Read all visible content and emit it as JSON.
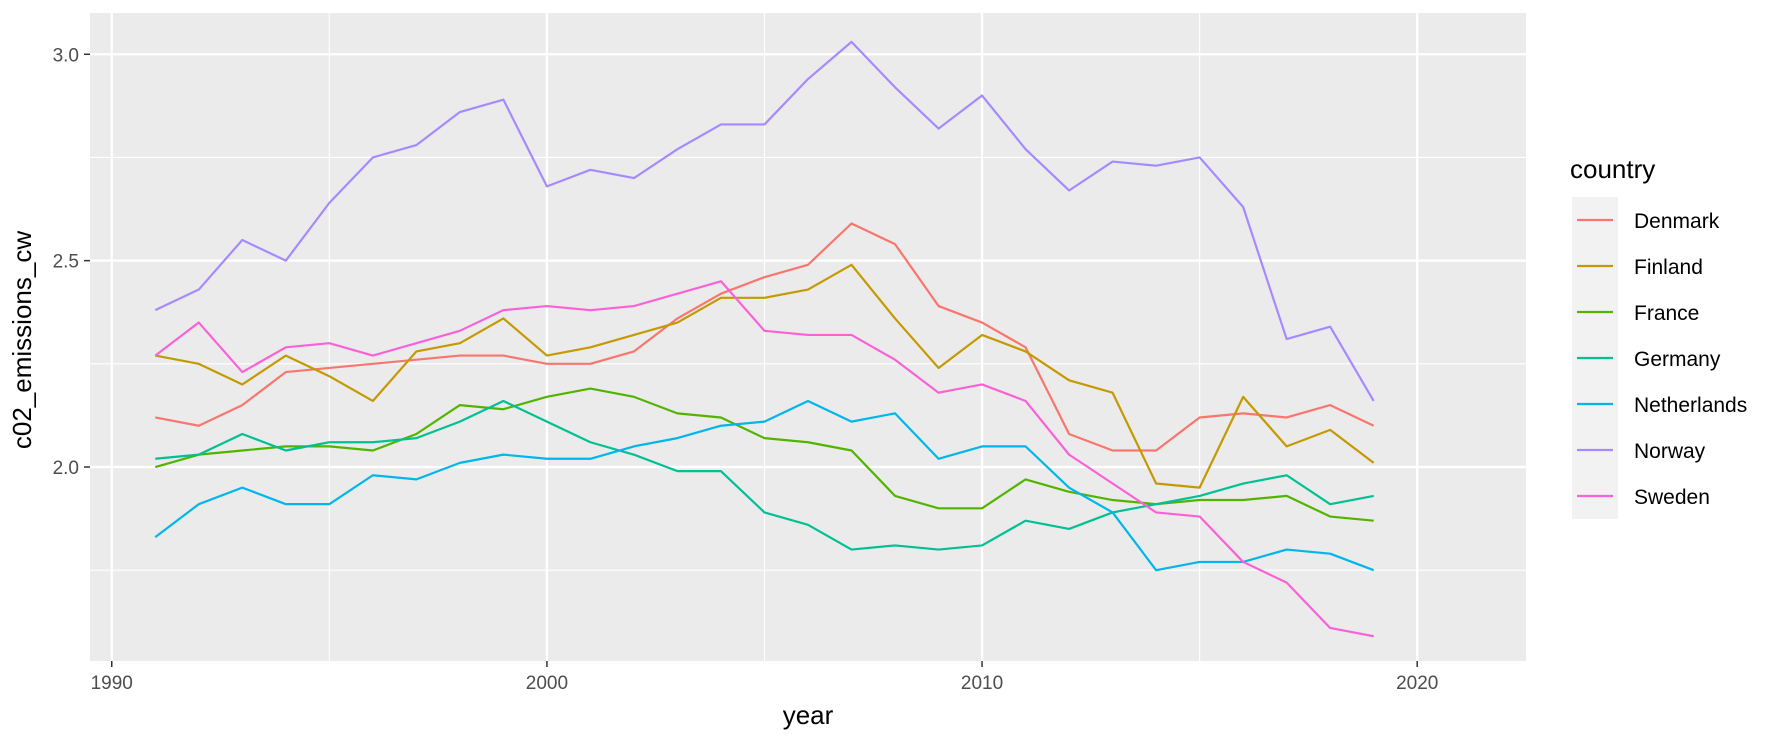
{
  "chart_data": {
    "type": "line",
    "xlabel": "year",
    "ylabel": "c02_emissions_cw",
    "xlim": [
      1989.5,
      2022.5
    ],
    "ylim": [
      1.53,
      3.1
    ],
    "x_ticks": [
      1990,
      2000,
      2010,
      2020
    ],
    "x_tick_labels": [
      "1990",
      "2000",
      "2010",
      "2020"
    ],
    "y_ticks": [
      2.0,
      2.5,
      3.0
    ],
    "y_tick_labels": [
      "2.0",
      "2.5",
      "3.0"
    ],
    "grid": true,
    "legend": {
      "title": "country",
      "position": "right"
    },
    "x": [
      1991,
      1992,
      1993,
      1994,
      1995,
      1996,
      1997,
      1998,
      1999,
      2000,
      2001,
      2002,
      2003,
      2004,
      2005,
      2006,
      2007,
      2008,
      2009,
      2010,
      2011,
      2012,
      2013,
      2014,
      2015,
      2016,
      2017,
      2018,
      2019
    ],
    "series": [
      {
        "name": "Denmark",
        "color": "#F8766D",
        "values": [
          2.12,
          2.1,
          2.15,
          2.23,
          2.24,
          2.25,
          2.26,
          2.27,
          2.27,
          2.25,
          2.25,
          2.28,
          2.36,
          2.42,
          2.46,
          2.49,
          2.59,
          2.54,
          2.39,
          2.35,
          2.29,
          2.08,
          2.04,
          2.04,
          2.12,
          2.13,
          2.12,
          2.15,
          2.1
        ]
      },
      {
        "name": "Finland",
        "color": "#C49A00",
        "values": [
          2.27,
          2.25,
          2.2,
          2.27,
          2.22,
          2.16,
          2.28,
          2.3,
          2.36,
          2.27,
          2.29,
          2.32,
          2.35,
          2.41,
          2.41,
          2.43,
          2.49,
          2.36,
          2.24,
          2.32,
          2.28,
          2.21,
          2.18,
          1.96,
          1.95,
          2.17,
          2.05,
          2.09,
          2.01
        ]
      },
      {
        "name": "France",
        "color": "#53B400",
        "values": [
          2.0,
          2.03,
          2.04,
          2.05,
          2.05,
          2.04,
          2.08,
          2.15,
          2.14,
          2.17,
          2.19,
          2.17,
          2.13,
          2.12,
          2.07,
          2.06,
          2.04,
          1.93,
          1.9,
          1.9,
          1.97,
          1.94,
          1.92,
          1.91,
          1.92,
          1.92,
          1.93,
          1.88,
          1.87
        ]
      },
      {
        "name": "Germany",
        "color": "#00C094",
        "values": [
          2.02,
          2.03,
          2.08,
          2.04,
          2.06,
          2.06,
          2.07,
          2.11,
          2.16,
          2.11,
          2.06,
          2.03,
          1.99,
          1.99,
          1.89,
          1.86,
          1.8,
          1.81,
          1.8,
          1.81,
          1.87,
          1.85,
          1.89,
          1.91,
          1.93,
          1.96,
          1.98,
          1.91,
          1.93
        ]
      },
      {
        "name": "Netherlands",
        "color": "#00B6EB",
        "values": [
          1.83,
          1.91,
          1.95,
          1.91,
          1.91,
          1.98,
          1.97,
          2.01,
          2.03,
          2.02,
          2.02,
          2.05,
          2.07,
          2.1,
          2.11,
          2.16,
          2.11,
          2.13,
          2.02,
          2.05,
          2.05,
          1.95,
          1.89,
          1.75,
          1.77,
          1.77,
          1.8,
          1.79,
          1.75
        ]
      },
      {
        "name": "Norway",
        "color": "#A58AFF",
        "values": [
          2.38,
          2.43,
          2.55,
          2.5,
          2.64,
          2.75,
          2.78,
          2.86,
          2.89,
          2.68,
          2.72,
          2.7,
          2.77,
          2.83,
          2.83,
          2.94,
          3.03,
          2.92,
          2.82,
          2.9,
          2.77,
          2.67,
          2.74,
          2.73,
          2.75,
          2.63,
          2.31,
          2.34,
          2.16
        ]
      },
      {
        "name": "Sweden",
        "color": "#FB61D7",
        "values": [
          2.27,
          2.35,
          2.23,
          2.29,
          2.3,
          2.27,
          2.3,
          2.33,
          2.38,
          2.39,
          2.38,
          2.39,
          2.42,
          2.45,
          2.33,
          2.32,
          2.32,
          2.26,
          2.18,
          2.2,
          2.16,
          2.03,
          1.96,
          1.89,
          1.88,
          1.77,
          1.72,
          1.61,
          1.59
        ]
      }
    ]
  }
}
